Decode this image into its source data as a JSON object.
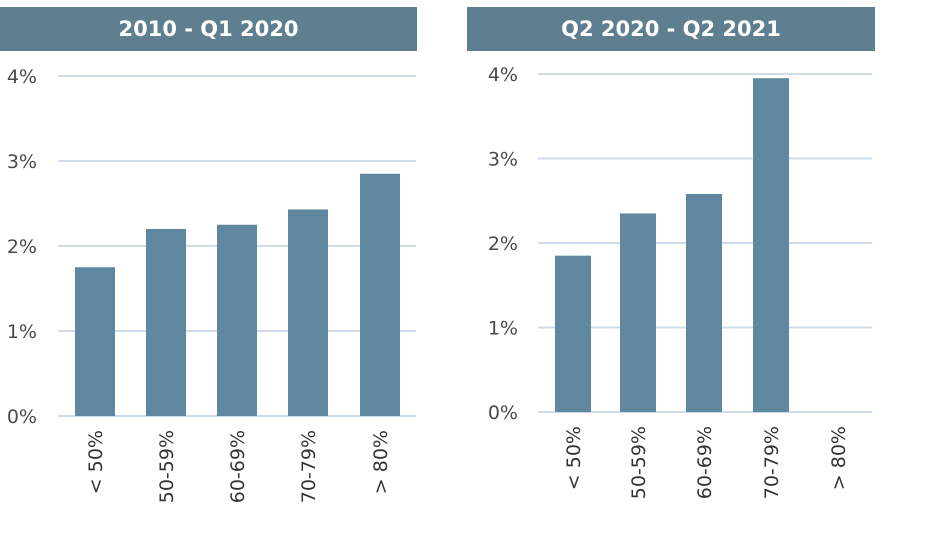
{
  "chart_data": [
    {
      "type": "bar",
      "title": "2010 - Q1 2020",
      "categories": [
        "< 50%",
        "50-59%",
        "60-69%",
        "70-79%",
        "> 80%"
      ],
      "values": [
        1.75,
        2.2,
        2.25,
        2.43,
        2.85
      ],
      "ylim": [
        0,
        4
      ],
      "yticks": [
        "0%",
        "1%",
        "2%",
        "3%",
        "4%"
      ],
      "grid": true,
      "color": "#5f87a0"
    },
    {
      "type": "bar",
      "title": "Q2 2020 - Q2 2021",
      "categories": [
        "< 50%",
        "50-59%",
        "60-69%",
        "70-79%",
        "> 80%"
      ],
      "values": [
        1.85,
        2.35,
        2.58,
        3.95,
        0
      ],
      "ylim": [
        0,
        4
      ],
      "yticks": [
        "0%",
        "1%",
        "2%",
        "3%",
        "4%"
      ],
      "grid": true,
      "color": "#5f87a0"
    }
  ]
}
